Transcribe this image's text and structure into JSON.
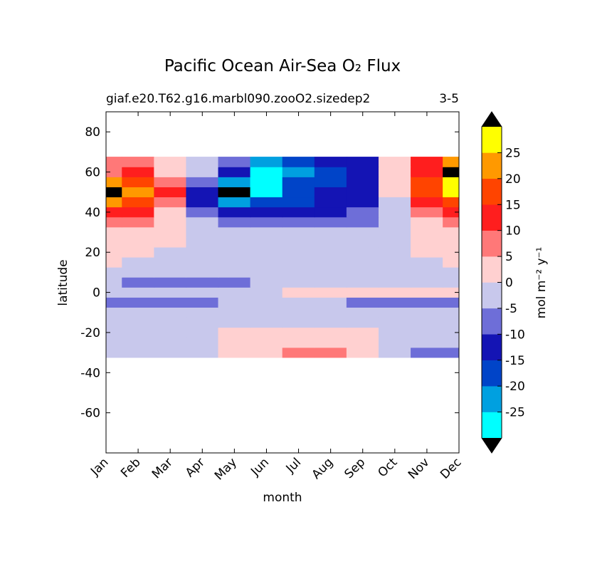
{
  "chart_data": {
    "type": "contourf",
    "title": "Pacific Ocean Air-Sea O₂ Flux",
    "subtitle": "giaf.e20.T62.g16.marbl090.zooO2.sizedep2",
    "subtitle_right": "3-5",
    "x_label": "month",
    "y_label": "latitude",
    "categories": [
      "Jan",
      "Feb",
      "Mar",
      "Apr",
      "May",
      "Jun",
      "Jul",
      "Aug",
      "Sep",
      "Oct",
      "Nov",
      "Dec"
    ],
    "lat": [
      -30,
      -25,
      -20,
      -15,
      -10,
      -5,
      0,
      5,
      10,
      15,
      20,
      25,
      30,
      35,
      40,
      45,
      50,
      55,
      60,
      65
    ],
    "values": [
      [
        -2,
        -2,
        -1,
        -1,
        0.5,
        3,
        7,
        6,
        2,
        -1,
        -6,
        -6
      ],
      [
        -1,
        -1,
        -1,
        -1,
        1,
        3,
        4,
        3,
        1,
        -1,
        -1,
        -1
      ],
      [
        -1,
        -1,
        -1,
        -1,
        2,
        3,
        3,
        3,
        1,
        -1,
        -1,
        -1
      ],
      [
        -2,
        -2,
        -2,
        -1,
        -1,
        -1,
        -1,
        -1,
        -2,
        -2,
        -2,
        -2
      ],
      [
        -3,
        -3,
        -2,
        -2,
        -2,
        -2,
        -2,
        -2,
        -3,
        -3,
        -3,
        -3
      ],
      [
        -6,
        -6,
        -6,
        -6,
        -4,
        -2,
        -2,
        -2,
        -6,
        -6,
        -6,
        -6
      ],
      [
        -1,
        -1,
        -1,
        -1,
        -1,
        -1,
        1,
        1,
        1,
        1,
        1,
        1
      ],
      [
        -3,
        -6,
        -6,
        -6,
        -6,
        -4,
        -3,
        -3,
        -3,
        -3,
        -3,
        -3
      ],
      [
        -2,
        -2,
        -3,
        -3,
        -3,
        -2,
        -2,
        -2,
        -2,
        -2,
        -2,
        -2
      ],
      [
        0.5,
        -0.5,
        -1,
        -2,
        -2,
        -2,
        -2,
        -2,
        -2,
        -2,
        -0.5,
        0.5
      ],
      [
        1,
        1,
        -0.5,
        -1.5,
        -2,
        -2,
        -2,
        -2,
        -2,
        -1.5,
        0.5,
        1
      ],
      [
        2,
        2,
        0.5,
        -1,
        -2,
        -2,
        -2,
        -2,
        -2,
        -1,
        1,
        2
      ],
      [
        4,
        3,
        1,
        -2,
        -3,
        -3,
        -3,
        -3,
        -3,
        -2,
        2,
        4
      ],
      [
        8,
        6,
        2,
        -4,
        -6,
        -7,
        -6,
        -6,
        -6,
        -3,
        3,
        7
      ],
      [
        15,
        12,
        5,
        -7,
        -12,
        -12,
        -11,
        -10,
        -8,
        -3,
        7,
        12
      ],
      [
        22,
        17,
        8,
        -10,
        -22,
        -18,
        -15,
        -13,
        -10,
        -2,
        12,
        20
      ],
      [
        31,
        22,
        12,
        -10,
        -31,
        -25,
        -17,
        -14,
        -12,
        1,
        18,
        26
      ],
      [
        25,
        20,
        10,
        -8,
        -22,
        -26,
        -18,
        -15,
        -13,
        2,
        20,
        28
      ],
      [
        10,
        12,
        5,
        -3,
        -10,
        -26,
        -20,
        -15,
        -12,
        3,
        15,
        31
      ],
      [
        8,
        10,
        4,
        -2,
        -8,
        -20,
        -18,
        -14,
        -11,
        2,
        12,
        24
      ]
    ],
    "levels": [
      -30,
      -25,
      -20,
      -15,
      -10,
      -5,
      0,
      5,
      10,
      15,
      20,
      25,
      30
    ],
    "colors": [
      "#00ffff",
      "#00a0e0",
      "#0044c8",
      "#1414b4",
      "#6e6ed8",
      "#c8c8ec",
      "#ffd0d0",
      "#ff7878",
      "#ff1e1e",
      "#ff4400",
      "#ff9900",
      "#ffff00"
    ],
    "extend_color": "#000000",
    "colorbar_label": "mol m⁻² y⁻¹",
    "colorbar_ticks": [
      -25,
      -20,
      -15,
      -10,
      -5,
      0,
      5,
      10,
      15,
      20,
      25
    ],
    "ylim": [
      -80,
      90
    ],
    "yticks": [
      -60,
      -40,
      -20,
      0,
      20,
      40,
      60,
      80
    ]
  }
}
